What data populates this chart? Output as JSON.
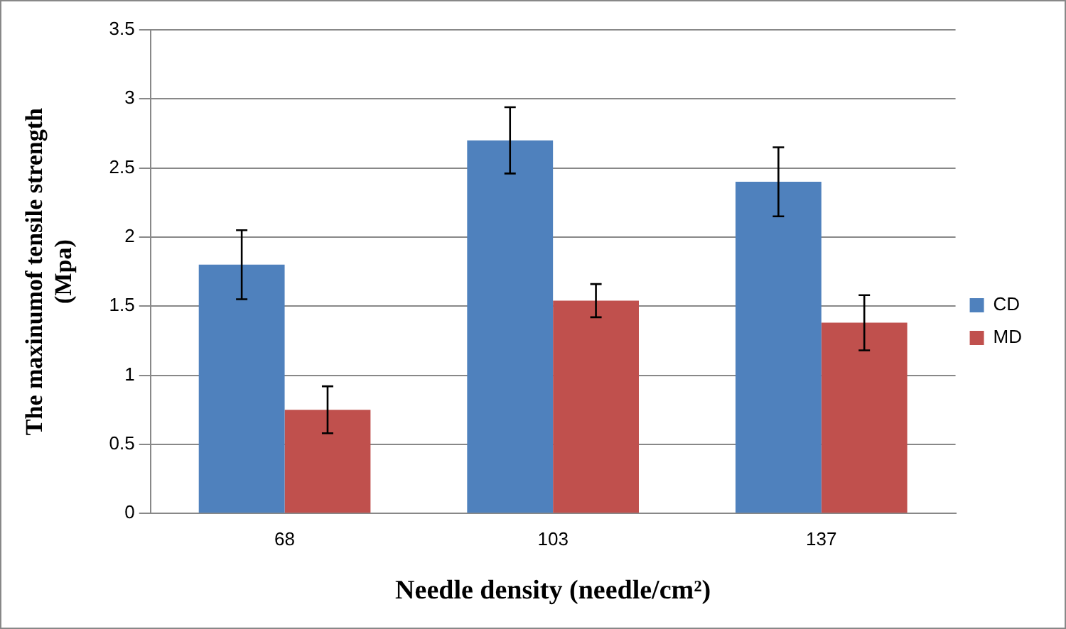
{
  "chart_data": {
    "type": "bar",
    "xlabel": "Needle density (needle/cm²)",
    "ylabel": "The maxinumof tensile strength (Mpa)",
    "categories": [
      "68",
      "103",
      "137"
    ],
    "series": [
      {
        "name": "CD",
        "color": "#4f81bd",
        "values": [
          1.8,
          2.7,
          2.4
        ],
        "errors": [
          0.25,
          0.24,
          0.25
        ]
      },
      {
        "name": "MD",
        "color": "#c0504d",
        "values": [
          0.75,
          1.54,
          1.38
        ],
        "errors": [
          0.17,
          0.12,
          0.2
        ]
      }
    ],
    "ylim": [
      0,
      3.5
    ],
    "yticks": [
      0,
      0.5,
      1,
      1.5,
      2,
      2.5,
      3,
      3.5
    ],
    "grid": "y",
    "legend": "right"
  }
}
